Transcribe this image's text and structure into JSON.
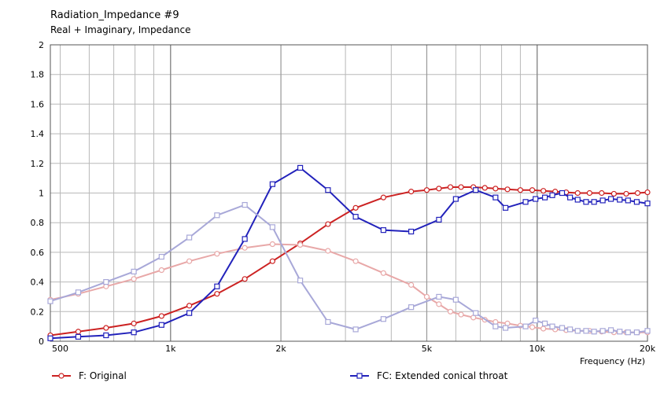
{
  "title": "Radiation_Impedance #9",
  "subtitle": "Real + Imaginary, Impedance",
  "chart_data": {
    "type": "line",
    "x_scale": "log",
    "xlim": [
      470,
      20000
    ],
    "ylim": [
      0,
      2
    ],
    "xlabel": "Frequency  (Hz)",
    "ylabel": "",
    "grid": true,
    "legend_position": "bottom",
    "x_tick_labels": [
      {
        "value": 500,
        "label": "500"
      },
      {
        "value": 1000,
        "label": "1k"
      },
      {
        "value": 2000,
        "label": "2k"
      },
      {
        "value": 5000,
        "label": "5k"
      },
      {
        "value": 10000,
        "label": "10k"
      },
      {
        "value": 20000,
        "label": "20k"
      }
    ],
    "y_tick_labels": [
      "0",
      "0.2",
      "0.4",
      "0.6",
      "0.8",
      "1",
      "1.2",
      "1.4",
      "1.6",
      "1.8",
      "2"
    ],
    "legend": [
      {
        "label": "F: Original",
        "color": "#cc2222",
        "marker": "circle"
      },
      {
        "label": "FC: Extended conical throat",
        "color": "#2222bb",
        "marker": "square"
      }
    ],
    "series": [
      {
        "key": "F-real",
        "color": "#cc2222",
        "marker": "circle",
        "x": [
          470,
          560,
          667,
          794,
          945,
          1125,
          1339,
          1594,
          1897,
          2258,
          2688,
          3199,
          3808,
          4533,
          5000,
          5396,
          5800,
          6200,
          6700,
          7200,
          7700,
          8300,
          9000,
          9700,
          10400,
          11200,
          12000,
          12900,
          13900,
          15000,
          16200,
          17500,
          18800,
          20000
        ],
        "y": [
          0.04,
          0.065,
          0.09,
          0.12,
          0.17,
          0.24,
          0.32,
          0.42,
          0.54,
          0.66,
          0.79,
          0.9,
          0.97,
          1.01,
          1.02,
          1.03,
          1.04,
          1.04,
          1.04,
          1.035,
          1.03,
          1.025,
          1.02,
          1.02,
          1.015,
          1.01,
          1.005,
          1.0,
          1.0,
          1.0,
          0.995,
          0.995,
          1.0,
          1.005
        ]
      },
      {
        "key": "F-imag",
        "color": "#e8a8a8",
        "marker": "circle",
        "x": [
          470,
          560,
          667,
          794,
          945,
          1125,
          1339,
          1594,
          1897,
          2258,
          2688,
          3199,
          3808,
          4533,
          5000,
          5396,
          5800,
          6200,
          6700,
          7200,
          7700,
          8300,
          9000,
          9700,
          10400,
          11200,
          12000,
          12900,
          13900,
          15000,
          16200,
          17500,
          18800,
          20000
        ],
        "y": [
          0.28,
          0.32,
          0.37,
          0.42,
          0.48,
          0.54,
          0.59,
          0.63,
          0.655,
          0.65,
          0.61,
          0.54,
          0.46,
          0.38,
          0.3,
          0.25,
          0.2,
          0.18,
          0.16,
          0.145,
          0.13,
          0.12,
          0.105,
          0.095,
          0.085,
          0.08,
          0.075,
          0.07,
          0.07,
          0.065,
          0.06,
          0.06,
          0.06,
          0.06
        ]
      },
      {
        "key": "FC-real",
        "color": "#2222bb",
        "marker": "square",
        "x": [
          470,
          560,
          667,
          794,
          945,
          1125,
          1339,
          1594,
          1897,
          2258,
          2688,
          3199,
          3808,
          4533,
          5396,
          6000,
          6800,
          7700,
          8200,
          9300,
          9900,
          10500,
          11000,
          11700,
          12300,
          12900,
          13600,
          14300,
          15100,
          15900,
          16800,
          17700,
          18700,
          20000
        ],
        "y": [
          0.02,
          0.03,
          0.04,
          0.06,
          0.11,
          0.19,
          0.37,
          0.69,
          1.06,
          1.17,
          1.02,
          0.84,
          0.75,
          0.74,
          0.82,
          0.96,
          1.02,
          0.97,
          0.9,
          0.94,
          0.96,
          0.97,
          0.985,
          1.0,
          0.97,
          0.955,
          0.94,
          0.94,
          0.95,
          0.96,
          0.955,
          0.95,
          0.94,
          0.93
        ]
      },
      {
        "key": "FC-imag",
        "color": "#a8a8d8",
        "marker": "square",
        "x": [
          470,
          560,
          667,
          794,
          945,
          1125,
          1339,
          1594,
          1897,
          2258,
          2688,
          3199,
          3808,
          4533,
          5396,
          6000,
          6800,
          7700,
          8200,
          9300,
          9900,
          10500,
          11000,
          11700,
          12300,
          12900,
          13600,
          14300,
          15100,
          15900,
          16800,
          17700,
          18700,
          20000
        ],
        "y": [
          0.27,
          0.33,
          0.4,
          0.47,
          0.57,
          0.7,
          0.85,
          0.92,
          0.77,
          0.41,
          0.13,
          0.08,
          0.15,
          0.23,
          0.3,
          0.28,
          0.19,
          0.1,
          0.09,
          0.1,
          0.14,
          0.12,
          0.1,
          0.09,
          0.08,
          0.07,
          0.07,
          0.065,
          0.07,
          0.075,
          0.065,
          0.06,
          0.06,
          0.07
        ]
      }
    ]
  }
}
